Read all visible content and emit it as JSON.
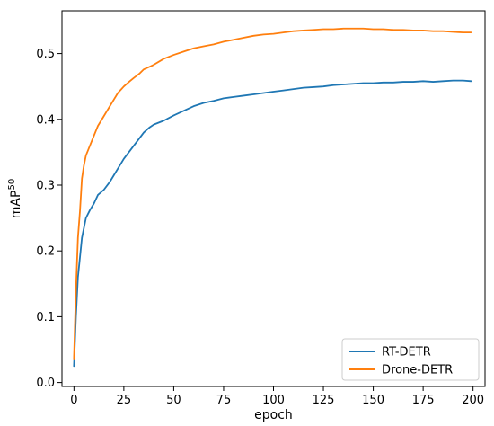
{
  "chart_data": {
    "type": "line",
    "title": "",
    "xlabel": "epoch",
    "ylabel": "mAP",
    "ylabel_superscript": "50",
    "xlim": [
      -6,
      206
    ],
    "ylim": [
      -0.006,
      0.565
    ],
    "xticks": [
      0,
      25,
      50,
      75,
      100,
      125,
      150,
      175,
      200
    ],
    "yticks": [
      0.0,
      0.1,
      0.2,
      0.3,
      0.4,
      0.5
    ],
    "xtick_labels": [
      "0",
      "25",
      "50",
      "75",
      "100",
      "125",
      "150",
      "175",
      "200"
    ],
    "ytick_labels": [
      "0.0",
      "0.1",
      "0.2",
      "0.3",
      "0.4",
      "0.5"
    ],
    "grid": false,
    "legend_position": "lower-right",
    "series": [
      {
        "name": "RT-DETR",
        "color": "#1f77b4",
        "x": [
          0,
          1,
          2,
          3,
          4,
          5,
          6,
          8,
          10,
          12,
          15,
          18,
          20,
          22,
          25,
          28,
          30,
          33,
          35,
          38,
          40,
          45,
          50,
          55,
          60,
          65,
          70,
          75,
          80,
          85,
          90,
          95,
          100,
          105,
          110,
          115,
          120,
          125,
          130,
          135,
          140,
          145,
          150,
          155,
          160,
          165,
          170,
          175,
          180,
          185,
          190,
          195,
          199
        ],
        "y": [
          0.025,
          0.1,
          0.16,
          0.19,
          0.22,
          0.235,
          0.25,
          0.262,
          0.272,
          0.285,
          0.293,
          0.305,
          0.315,
          0.325,
          0.34,
          0.352,
          0.36,
          0.372,
          0.38,
          0.388,
          0.392,
          0.398,
          0.406,
          0.413,
          0.42,
          0.425,
          0.428,
          0.432,
          0.434,
          0.436,
          0.438,
          0.44,
          0.442,
          0.444,
          0.446,
          0.448,
          0.449,
          0.45,
          0.452,
          0.453,
          0.454,
          0.455,
          0.455,
          0.456,
          0.456,
          0.457,
          0.457,
          0.458,
          0.457,
          0.458,
          0.459,
          0.459,
          0.458
        ]
      },
      {
        "name": "Drone-DETR",
        "color": "#ff7f0e",
        "x": [
          0,
          1,
          2,
          3,
          4,
          5,
          6,
          8,
          10,
          12,
          15,
          18,
          20,
          22,
          25,
          28,
          30,
          33,
          35,
          38,
          40,
          45,
          50,
          55,
          60,
          65,
          70,
          75,
          80,
          85,
          90,
          95,
          100,
          105,
          110,
          115,
          120,
          125,
          130,
          135,
          140,
          145,
          150,
          155,
          160,
          165,
          170,
          175,
          180,
          185,
          190,
          195,
          199
        ],
        "y": [
          0.035,
          0.14,
          0.22,
          0.26,
          0.31,
          0.33,
          0.345,
          0.36,
          0.375,
          0.39,
          0.405,
          0.42,
          0.43,
          0.44,
          0.45,
          0.458,
          0.463,
          0.47,
          0.476,
          0.48,
          0.483,
          0.492,
          0.498,
          0.503,
          0.508,
          0.511,
          0.514,
          0.518,
          0.521,
          0.524,
          0.527,
          0.529,
          0.53,
          0.532,
          0.534,
          0.535,
          0.536,
          0.537,
          0.537,
          0.538,
          0.538,
          0.538,
          0.537,
          0.537,
          0.536,
          0.536,
          0.535,
          0.535,
          0.534,
          0.534,
          0.533,
          0.532,
          0.532
        ]
      }
    ]
  }
}
